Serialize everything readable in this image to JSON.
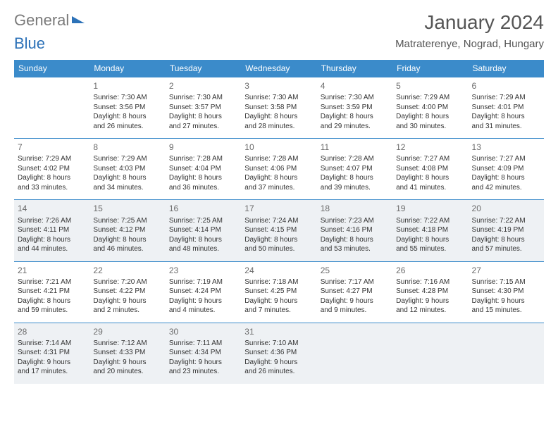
{
  "header": {
    "logo_general": "General",
    "logo_blue": "Blue",
    "month_title": "January 2024",
    "location": "Matraterenye, Nograd, Hungary"
  },
  "style": {
    "header_bg": "#3b8bca",
    "header_text": "#ffffff",
    "alt_row_bg": "#eef1f4",
    "border_color": "#3b8bca",
    "text_color": "#333333",
    "daynum_color": "#6a6a6a",
    "font_size_cell": 10,
    "font_size_daynum": 12,
    "font_size_header": 12,
    "font_size_title": 28
  },
  "weekdays": [
    "Sunday",
    "Monday",
    "Tuesday",
    "Wednesday",
    "Thursday",
    "Friday",
    "Saturday"
  ],
  "weeks": [
    [
      null,
      {
        "day": "1",
        "sunrise": "Sunrise: 7:30 AM",
        "sunset": "Sunset: 3:56 PM",
        "day1": "Daylight: 8 hours",
        "day2": "and 26 minutes."
      },
      {
        "day": "2",
        "sunrise": "Sunrise: 7:30 AM",
        "sunset": "Sunset: 3:57 PM",
        "day1": "Daylight: 8 hours",
        "day2": "and 27 minutes."
      },
      {
        "day": "3",
        "sunrise": "Sunrise: 7:30 AM",
        "sunset": "Sunset: 3:58 PM",
        "day1": "Daylight: 8 hours",
        "day2": "and 28 minutes."
      },
      {
        "day": "4",
        "sunrise": "Sunrise: 7:30 AM",
        "sunset": "Sunset: 3:59 PM",
        "day1": "Daylight: 8 hours",
        "day2": "and 29 minutes."
      },
      {
        "day": "5",
        "sunrise": "Sunrise: 7:29 AM",
        "sunset": "Sunset: 4:00 PM",
        "day1": "Daylight: 8 hours",
        "day2": "and 30 minutes."
      },
      {
        "day": "6",
        "sunrise": "Sunrise: 7:29 AM",
        "sunset": "Sunset: 4:01 PM",
        "day1": "Daylight: 8 hours",
        "day2": "and 31 minutes."
      }
    ],
    [
      {
        "day": "7",
        "sunrise": "Sunrise: 7:29 AM",
        "sunset": "Sunset: 4:02 PM",
        "day1": "Daylight: 8 hours",
        "day2": "and 33 minutes."
      },
      {
        "day": "8",
        "sunrise": "Sunrise: 7:29 AM",
        "sunset": "Sunset: 4:03 PM",
        "day1": "Daylight: 8 hours",
        "day2": "and 34 minutes."
      },
      {
        "day": "9",
        "sunrise": "Sunrise: 7:28 AM",
        "sunset": "Sunset: 4:04 PM",
        "day1": "Daylight: 8 hours",
        "day2": "and 36 minutes."
      },
      {
        "day": "10",
        "sunrise": "Sunrise: 7:28 AM",
        "sunset": "Sunset: 4:06 PM",
        "day1": "Daylight: 8 hours",
        "day2": "and 37 minutes."
      },
      {
        "day": "11",
        "sunrise": "Sunrise: 7:28 AM",
        "sunset": "Sunset: 4:07 PM",
        "day1": "Daylight: 8 hours",
        "day2": "and 39 minutes."
      },
      {
        "day": "12",
        "sunrise": "Sunrise: 7:27 AM",
        "sunset": "Sunset: 4:08 PM",
        "day1": "Daylight: 8 hours",
        "day2": "and 41 minutes."
      },
      {
        "day": "13",
        "sunrise": "Sunrise: 7:27 AM",
        "sunset": "Sunset: 4:09 PM",
        "day1": "Daylight: 8 hours",
        "day2": "and 42 minutes."
      }
    ],
    [
      {
        "day": "14",
        "sunrise": "Sunrise: 7:26 AM",
        "sunset": "Sunset: 4:11 PM",
        "day1": "Daylight: 8 hours",
        "day2": "and 44 minutes."
      },
      {
        "day": "15",
        "sunrise": "Sunrise: 7:25 AM",
        "sunset": "Sunset: 4:12 PM",
        "day1": "Daylight: 8 hours",
        "day2": "and 46 minutes."
      },
      {
        "day": "16",
        "sunrise": "Sunrise: 7:25 AM",
        "sunset": "Sunset: 4:14 PM",
        "day1": "Daylight: 8 hours",
        "day2": "and 48 minutes."
      },
      {
        "day": "17",
        "sunrise": "Sunrise: 7:24 AM",
        "sunset": "Sunset: 4:15 PM",
        "day1": "Daylight: 8 hours",
        "day2": "and 50 minutes."
      },
      {
        "day": "18",
        "sunrise": "Sunrise: 7:23 AM",
        "sunset": "Sunset: 4:16 PM",
        "day1": "Daylight: 8 hours",
        "day2": "and 53 minutes."
      },
      {
        "day": "19",
        "sunrise": "Sunrise: 7:22 AM",
        "sunset": "Sunset: 4:18 PM",
        "day1": "Daylight: 8 hours",
        "day2": "and 55 minutes."
      },
      {
        "day": "20",
        "sunrise": "Sunrise: 7:22 AM",
        "sunset": "Sunset: 4:19 PM",
        "day1": "Daylight: 8 hours",
        "day2": "and 57 minutes."
      }
    ],
    [
      {
        "day": "21",
        "sunrise": "Sunrise: 7:21 AM",
        "sunset": "Sunset: 4:21 PM",
        "day1": "Daylight: 8 hours",
        "day2": "and 59 minutes."
      },
      {
        "day": "22",
        "sunrise": "Sunrise: 7:20 AM",
        "sunset": "Sunset: 4:22 PM",
        "day1": "Daylight: 9 hours",
        "day2": "and 2 minutes."
      },
      {
        "day": "23",
        "sunrise": "Sunrise: 7:19 AM",
        "sunset": "Sunset: 4:24 PM",
        "day1": "Daylight: 9 hours",
        "day2": "and 4 minutes."
      },
      {
        "day": "24",
        "sunrise": "Sunrise: 7:18 AM",
        "sunset": "Sunset: 4:25 PM",
        "day1": "Daylight: 9 hours",
        "day2": "and 7 minutes."
      },
      {
        "day": "25",
        "sunrise": "Sunrise: 7:17 AM",
        "sunset": "Sunset: 4:27 PM",
        "day1": "Daylight: 9 hours",
        "day2": "and 9 minutes."
      },
      {
        "day": "26",
        "sunrise": "Sunrise: 7:16 AM",
        "sunset": "Sunset: 4:28 PM",
        "day1": "Daylight: 9 hours",
        "day2": "and 12 minutes."
      },
      {
        "day": "27",
        "sunrise": "Sunrise: 7:15 AM",
        "sunset": "Sunset: 4:30 PM",
        "day1": "Daylight: 9 hours",
        "day2": "and 15 minutes."
      }
    ],
    [
      {
        "day": "28",
        "sunrise": "Sunrise: 7:14 AM",
        "sunset": "Sunset: 4:31 PM",
        "day1": "Daylight: 9 hours",
        "day2": "and 17 minutes."
      },
      {
        "day": "29",
        "sunrise": "Sunrise: 7:12 AM",
        "sunset": "Sunset: 4:33 PM",
        "day1": "Daylight: 9 hours",
        "day2": "and 20 minutes."
      },
      {
        "day": "30",
        "sunrise": "Sunrise: 7:11 AM",
        "sunset": "Sunset: 4:34 PM",
        "day1": "Daylight: 9 hours",
        "day2": "and 23 minutes."
      },
      {
        "day": "31",
        "sunrise": "Sunrise: 7:10 AM",
        "sunset": "Sunset: 4:36 PM",
        "day1": "Daylight: 9 hours",
        "day2": "and 26 minutes."
      },
      null,
      null,
      null
    ]
  ]
}
